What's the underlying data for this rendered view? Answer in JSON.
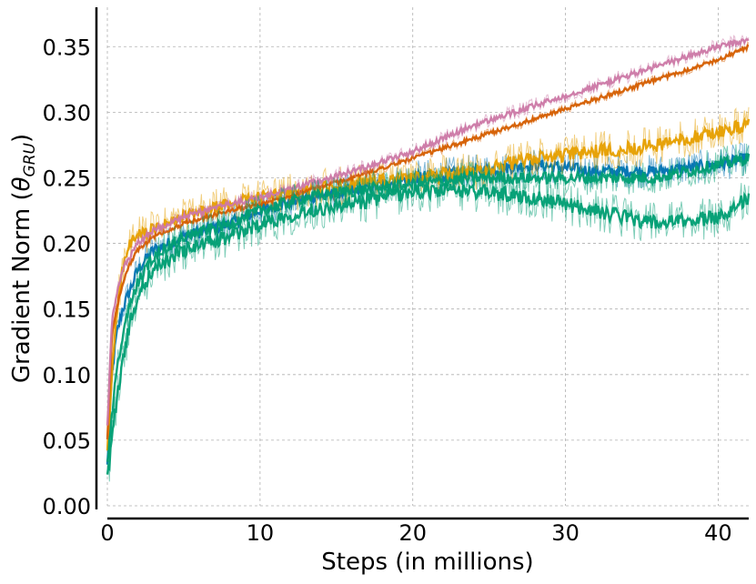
{
  "chart_data": {
    "type": "line",
    "title": "",
    "xlabel": "Steps (in millions)",
    "ylabel_main": "Gradient Norm (",
    "ylabel_theta": "θ",
    "ylabel_sub": "GRU",
    "ylabel_close": ")",
    "xlim": [
      0,
      42
    ],
    "ylim": [
      0,
      0.38
    ],
    "xticks": [
      0,
      10,
      20,
      30,
      40
    ],
    "xtick_labels": [
      "0",
      "10",
      "20",
      "30",
      "40"
    ],
    "yticks": [
      0.0,
      0.05,
      0.1,
      0.15,
      0.2,
      0.25,
      0.3,
      0.35
    ],
    "ytick_labels": [
      "0.00",
      "0.05",
      "0.10",
      "0.15",
      "0.20",
      "0.25",
      "0.30",
      "0.35"
    ],
    "grid": true,
    "series": [
      {
        "color": "#0072B2",
        "noise": 0.013,
        "x": [
          0,
          0.3,
          0.6,
          1,
          1.5,
          2,
          3,
          5,
          8,
          10,
          13,
          16,
          20,
          24,
          28,
          32,
          36,
          40,
          42
        ],
        "y": [
          0.03,
          0.1,
          0.13,
          0.15,
          0.165,
          0.18,
          0.195,
          0.205,
          0.215,
          0.225,
          0.235,
          0.24,
          0.25,
          0.255,
          0.26,
          0.255,
          0.255,
          0.26,
          0.265
        ]
      },
      {
        "color": "#E69F00",
        "noise": 0.015,
        "x": [
          0,
          0.3,
          0.6,
          1,
          1.5,
          2,
          3,
          5,
          8,
          10,
          13,
          16,
          20,
          24,
          28,
          32,
          36,
          40,
          42
        ],
        "y": [
          0.04,
          0.1,
          0.15,
          0.18,
          0.2,
          0.205,
          0.21,
          0.22,
          0.23,
          0.235,
          0.24,
          0.245,
          0.25,
          0.255,
          0.265,
          0.27,
          0.275,
          0.285,
          0.29
        ]
      },
      {
        "color": "#D55E00",
        "noise": 0.004,
        "x": [
          0,
          0.3,
          0.6,
          1,
          1.5,
          2,
          3,
          5,
          8,
          10,
          13,
          16,
          20,
          24,
          28,
          32,
          36,
          40,
          42
        ],
        "y": [
          0.05,
          0.13,
          0.15,
          0.17,
          0.185,
          0.195,
          0.205,
          0.215,
          0.225,
          0.23,
          0.24,
          0.25,
          0.265,
          0.28,
          0.295,
          0.31,
          0.325,
          0.34,
          0.35
        ]
      },
      {
        "color": "#CC79A7",
        "noise": 0.006,
        "x": [
          0,
          0.3,
          0.6,
          1,
          1.5,
          2,
          3,
          5,
          8,
          10,
          13,
          16,
          20,
          24,
          28,
          32,
          36,
          40,
          42
        ],
        "y": [
          0.06,
          0.14,
          0.16,
          0.18,
          0.19,
          0.2,
          0.21,
          0.22,
          0.23,
          0.235,
          0.245,
          0.255,
          0.27,
          0.29,
          0.305,
          0.32,
          0.335,
          0.35,
          0.355
        ]
      },
      {
        "color": "#009E73",
        "noise": 0.016,
        "x": [
          0,
          0.3,
          0.6,
          1,
          1.5,
          2,
          3,
          5,
          8,
          10,
          13,
          16,
          20,
          24,
          28,
          32,
          36,
          40,
          42
        ],
        "y": [
          0.02,
          0.05,
          0.08,
          0.11,
          0.14,
          0.16,
          0.18,
          0.195,
          0.205,
          0.215,
          0.225,
          0.23,
          0.24,
          0.24,
          0.235,
          0.225,
          0.215,
          0.22,
          0.235
        ]
      },
      {
        "color": "#009E73",
        "noise": 0.013,
        "x": [
          0,
          0.3,
          0.6,
          1,
          1.5,
          2,
          3,
          5,
          8,
          10,
          13,
          16,
          20,
          24,
          28,
          32,
          36,
          40,
          42
        ],
        "y": [
          0.03,
          0.07,
          0.1,
          0.13,
          0.155,
          0.17,
          0.19,
          0.205,
          0.215,
          0.225,
          0.235,
          0.24,
          0.245,
          0.25,
          0.25,
          0.25,
          0.25,
          0.26,
          0.265
        ]
      }
    ]
  }
}
